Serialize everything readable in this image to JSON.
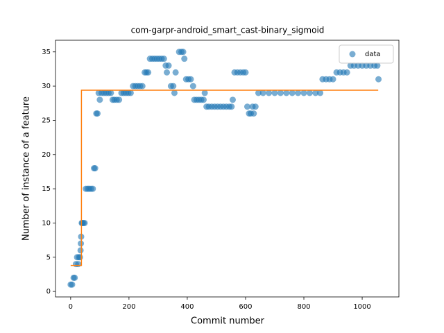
{
  "chart_data": {
    "type": "scatter",
    "title": "com-garpr-android_smart_cast-binary_sigmoid",
    "xlabel": "Commit number",
    "ylabel": "Number of instance of a feature",
    "xlim": [
      -52,
      1126
    ],
    "ylim": [
      -0.8,
      36.7
    ],
    "xticks": [
      0,
      200,
      400,
      600,
      800,
      1000
    ],
    "yticks": [
      0,
      5,
      10,
      15,
      20,
      25,
      30,
      35
    ],
    "grid": false,
    "legend": "upper right",
    "series": [
      {
        "name": "data",
        "type": "scatter",
        "color": "#1f77b4",
        "x": [
          0,
          5,
          10,
          14,
          18,
          22,
          26,
          28,
          32,
          34,
          35,
          36,
          38,
          40,
          44,
          48,
          52,
          58,
          64,
          70,
          76,
          80,
          84,
          88,
          92,
          96,
          100,
          106,
          114,
          122,
          130,
          138,
          144,
          150,
          158,
          166,
          174,
          182,
          190,
          198,
          206,
          214,
          222,
          230,
          238,
          246,
          254,
          260,
          266,
          272,
          280,
          288,
          296,
          304,
          312,
          320,
          326,
          330,
          336,
          344,
          352,
          356,
          360,
          372,
          380,
          386,
          390,
          396,
          404,
          412,
          420,
          424,
          432,
          440,
          448,
          456,
          460,
          466,
          474,
          484,
          494,
          504,
          514,
          524,
          534,
          544,
          552,
          556,
          562,
          572,
          582,
          592,
          600,
          606,
          612,
          618,
          624,
          628,
          634,
          644,
          660,
          680,
          700,
          720,
          740,
          760,
          780,
          800,
          820,
          840,
          856,
          864,
          876,
          888,
          900,
          912,
          924,
          936,
          948,
          960,
          972,
          986,
          1000,
          1014,
          1028,
          1042,
          1052,
          1056
        ],
        "values": [
          1,
          1,
          2,
          2,
          4,
          5,
          4,
          5,
          5,
          6,
          7,
          8,
          10,
          10,
          10,
          10,
          15,
          15,
          15,
          15,
          15,
          18,
          18,
          26,
          26,
          29,
          28,
          29,
          29,
          29,
          29,
          29,
          28,
          28,
          28,
          28,
          29,
          29,
          29,
          29,
          29,
          30,
          30,
          30,
          30,
          30,
          32,
          32,
          32,
          34,
          34,
          34,
          34,
          34,
          34,
          34,
          33,
          32,
          33,
          30,
          30,
          29,
          32,
          35,
          35,
          35,
          34,
          31,
          31,
          31,
          30,
          28,
          28,
          28,
          28,
          28,
          29,
          27,
          27,
          27,
          27,
          27,
          27,
          27,
          27,
          27,
          27,
          28,
          32,
          32,
          32,
          32,
          32,
          27,
          26,
          26,
          27,
          26,
          27,
          29,
          29,
          29,
          29,
          29,
          29,
          29,
          29,
          29,
          29,
          29,
          29,
          31,
          31,
          31,
          31,
          32,
          32,
          32,
          32,
          33,
          33,
          33,
          33,
          33,
          33,
          33,
          33,
          31
        ]
      },
      {
        "type": "line",
        "color": "#ff7f0e",
        "x": [
          0,
          37,
          37,
          1055
        ],
        "values": [
          3.8,
          3.8,
          29.4,
          29.4
        ]
      }
    ]
  }
}
